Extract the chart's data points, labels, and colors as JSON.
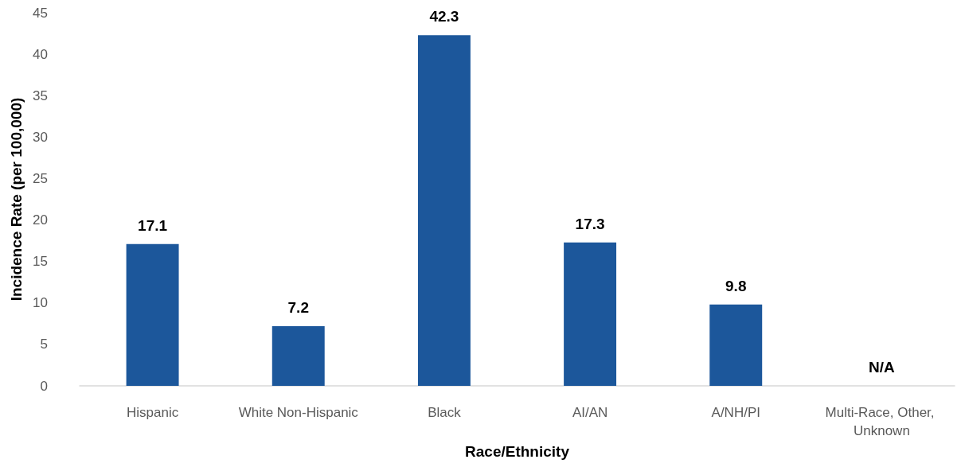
{
  "chart_data": {
    "type": "bar",
    "xlabel": "Race/Ethnicity",
    "ylabel": "Incidence Rate (per 100,000)",
    "categories": [
      "Hispanic",
      "White Non-Hispanic",
      "Black",
      "AI/AN",
      "A/NH/PI",
      "Multi-Race, Other, Unknown"
    ],
    "values": [
      17.1,
      7.2,
      42.3,
      17.3,
      9.8,
      null
    ],
    "value_labels": [
      "17.1",
      "7.2",
      "42.3",
      "17.3",
      "9.8",
      "N/A"
    ],
    "color": "#1c579b",
    "ylim": [
      0,
      45
    ],
    "yticks": [
      0,
      5,
      10,
      15,
      20,
      25,
      30,
      35,
      40,
      45
    ],
    "grid": false
  }
}
